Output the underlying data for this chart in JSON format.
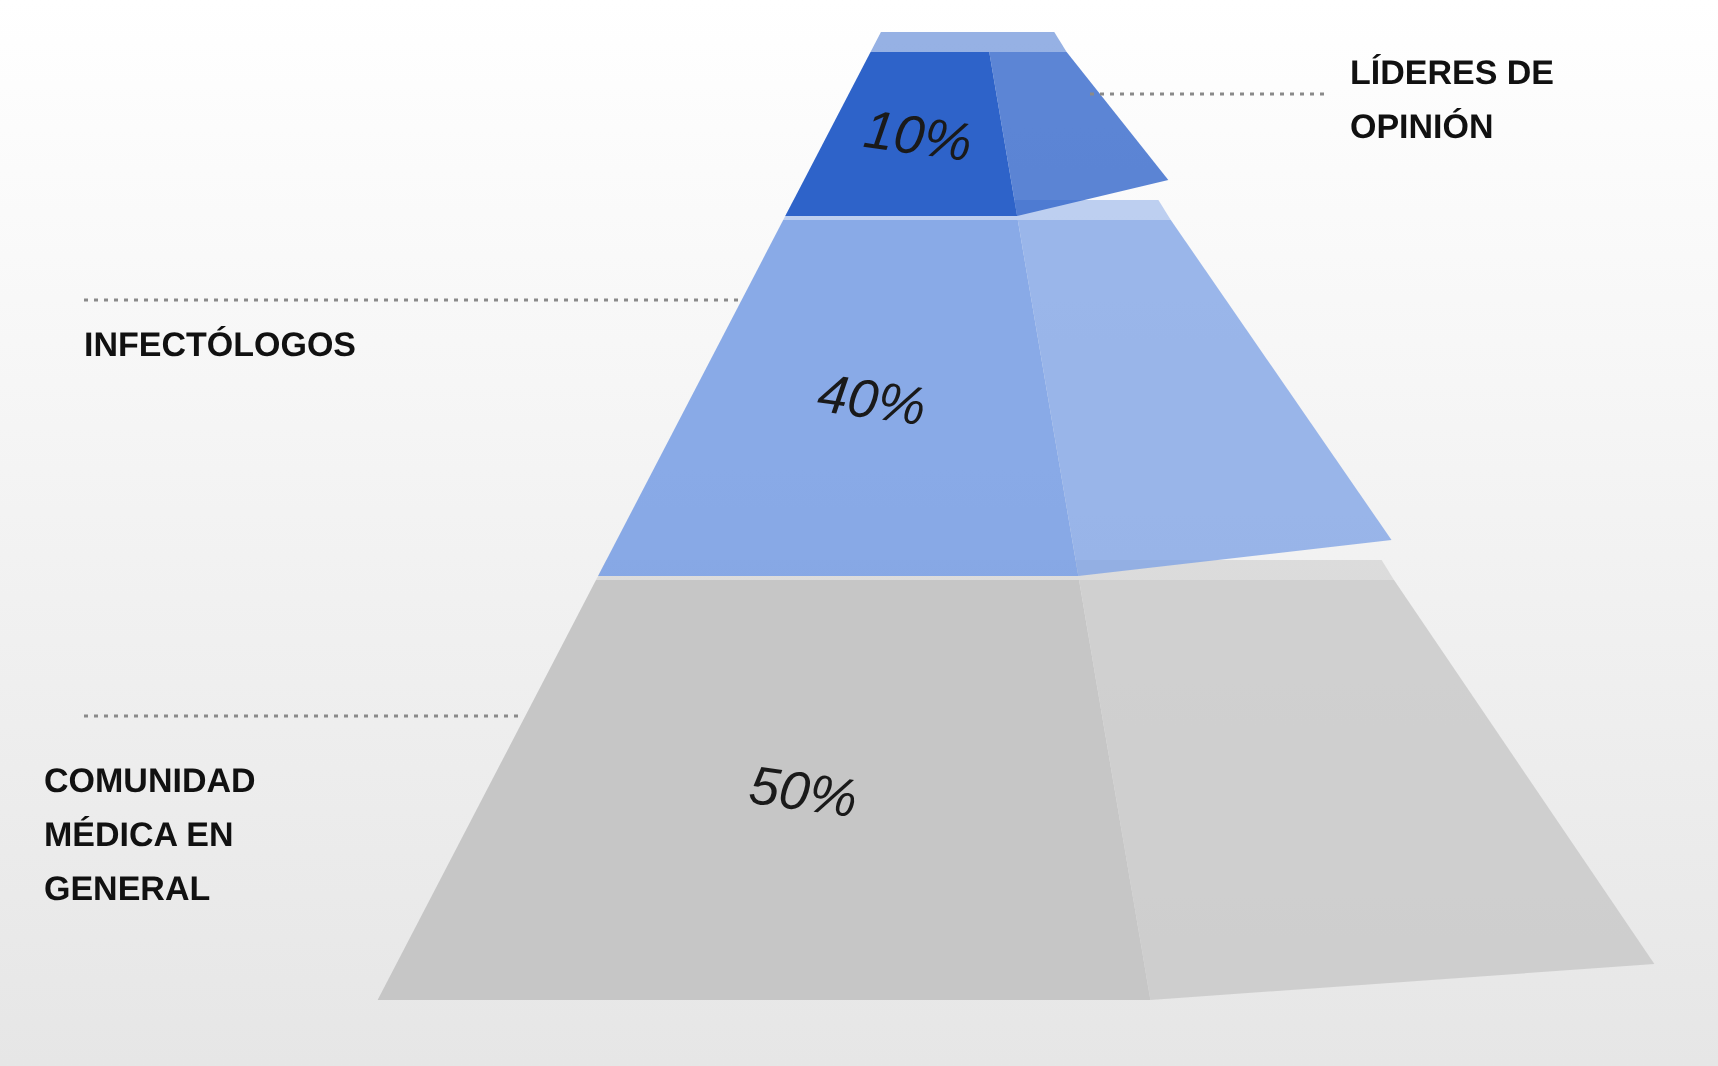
{
  "chart_data": {
    "type": "other",
    "categories": [
      "LÍDERES DE OPINIÓN",
      "INFECTÓLOGOS",
      "COMUNIDAD MÉDICA EN GENERAL"
    ],
    "values": [
      10,
      40,
      50
    ],
    "value_labels": [
      "10%",
      "40%",
      "50%"
    ],
    "colors": [
      "#2e63c9",
      "#7fa3e5",
      "#c6c6c6"
    ]
  }
}
